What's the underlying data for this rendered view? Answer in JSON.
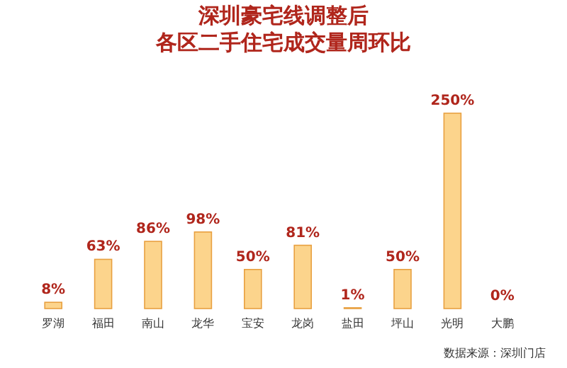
{
  "chart_data": {
    "type": "bar",
    "title": "深圳豪宅线调整后",
    "subtitle": "各区二手住宅成交量周环比",
    "categories": [
      "罗湖",
      "福田",
      "南山",
      "龙华",
      "宝安",
      "龙岗",
      "盐田",
      "坪山",
      "光明",
      "大鹏"
    ],
    "values": [
      8,
      63,
      86,
      98,
      50,
      81,
      1,
      50,
      250,
      0
    ],
    "value_labels": [
      "8%",
      "63%",
      "86%",
      "98%",
      "50%",
      "81%",
      "1%",
      "50%",
      "250%",
      "0%"
    ],
    "color": "#fcd48c",
    "annotations": [
      "数据来源：深圳门店"
    ]
  }
}
